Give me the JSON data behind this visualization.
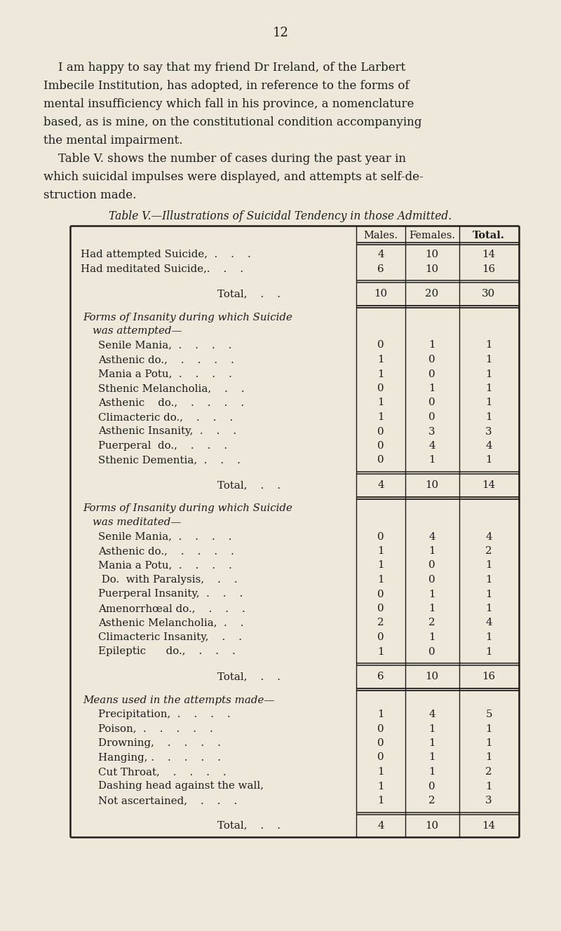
{
  "page_number": "12",
  "bg_color": "#ede8da",
  "text_color": "#1c1c1c",
  "intro_lines": [
    [
      "    I am happy to say that my friend Dr Ireland, of the Larbert",
      62
    ],
    [
      "Imbecile Institution, has adopted, in reference to the forms of",
      62
    ],
    [
      "mental insufficiency which fall in his province, a nomenclature",
      62
    ],
    [
      "based, as is mine, on the constitutional condition accompanying",
      62
    ],
    [
      "the mental impairment.",
      62
    ],
    [
      "    Table V. shows the number of cases during the past year in",
      62
    ],
    [
      "which suicidal impulses were displayed, and attempts at self-de-",
      62
    ],
    [
      "struction made.",
      62
    ]
  ],
  "table_title": "Table V.—Illustrations of Suicidal Tendency in those Admitted.",
  "col_headers": [
    "Males.",
    "Females.",
    "Total."
  ],
  "section1_rows": [
    [
      "Had attempted Suicide,  .    .    .",
      "4",
      "10",
      "14"
    ],
    [
      "Had meditated Suicide,.    .    .",
      "6",
      "10",
      "16"
    ]
  ],
  "section1_total": [
    "Total,    .    .",
    "10",
    "20",
    "30"
  ],
  "section2_title_line1": "Forms of Insanity during which Suicide",
  "section2_title_line2": "was attempted—",
  "section2_rows": [
    [
      "Senile Mania,  .    .    .    .",
      "0",
      "1",
      "1"
    ],
    [
      "Asthenic do.,    .    .    .    .",
      "1",
      "0",
      "1"
    ],
    [
      "Mania a Potu,  .    .    .    .",
      "1",
      "0",
      "1"
    ],
    [
      "Sthenic Melancholia,    .    .",
      "0",
      "1",
      "1"
    ],
    [
      "Asthenic    do.,    .    .    .    .",
      "1",
      "0",
      "1"
    ],
    [
      "Climacteric do.,    .    .    .",
      "1",
      "0",
      "1"
    ],
    [
      "Asthenic Insanity,  .    .    .",
      "0",
      "3",
      "3"
    ],
    [
      "Puerperal  do.,    .    .    .",
      "0",
      "4",
      "4"
    ],
    [
      "Sthenic Dementia,  .    .    .",
      "0",
      "1",
      "1"
    ]
  ],
  "section2_total": [
    "Total,    .    .",
    "4",
    "10",
    "14"
  ],
  "section3_title_line1": "Forms of Insanity during which Suicide",
  "section3_title_line2": "was meditated—",
  "section3_rows": [
    [
      "Senile Mania,  .    .    .    .",
      "0",
      "4",
      "4"
    ],
    [
      "Asthenic do.,    .    .    .    .",
      "1",
      "1",
      "2"
    ],
    [
      "Mania a Potu,  .    .    .    .",
      "1",
      "0",
      "1"
    ],
    [
      " Do.  with Paralysis,    .    .",
      "1",
      "0",
      "1"
    ],
    [
      "Puerperal Insanity,  .    .    .",
      "0",
      "1",
      "1"
    ],
    [
      "Amenorrhœal do.,    .    .    .",
      "0",
      "1",
      "1"
    ],
    [
      "Asthenic Melancholia,  .    .",
      "2",
      "2",
      "4"
    ],
    [
      "Climacteric Insanity,    .    .",
      "0",
      "1",
      "1"
    ],
    [
      "Epileptic      do.,    .    .    .",
      "1",
      "0",
      "1"
    ]
  ],
  "section3_total": [
    "Total,    .    .",
    "6",
    "10",
    "16"
  ],
  "section4_title_line1": "Means used in the attempts made—",
  "section4_rows": [
    [
      "Precipitation,  .    .    .    .",
      "1",
      "4",
      "5"
    ],
    [
      "Poison,  .    .    .    .    .",
      "0",
      "1",
      "1"
    ],
    [
      "Drowning,    .    .    .    .",
      "0",
      "1",
      "1"
    ],
    [
      "Hanging, .    .    .    .    .",
      "0",
      "1",
      "1"
    ],
    [
      "Cut Throat,    .    .    .    .",
      "1",
      "1",
      "2"
    ],
    [
      "Dashing head against the wall,",
      "1",
      "0",
      "1"
    ],
    [
      "Not ascertained,    .    .    .",
      "1",
      "2",
      "3"
    ]
  ],
  "section4_total": [
    "Total,    .    .",
    "4",
    "10",
    "14"
  ]
}
